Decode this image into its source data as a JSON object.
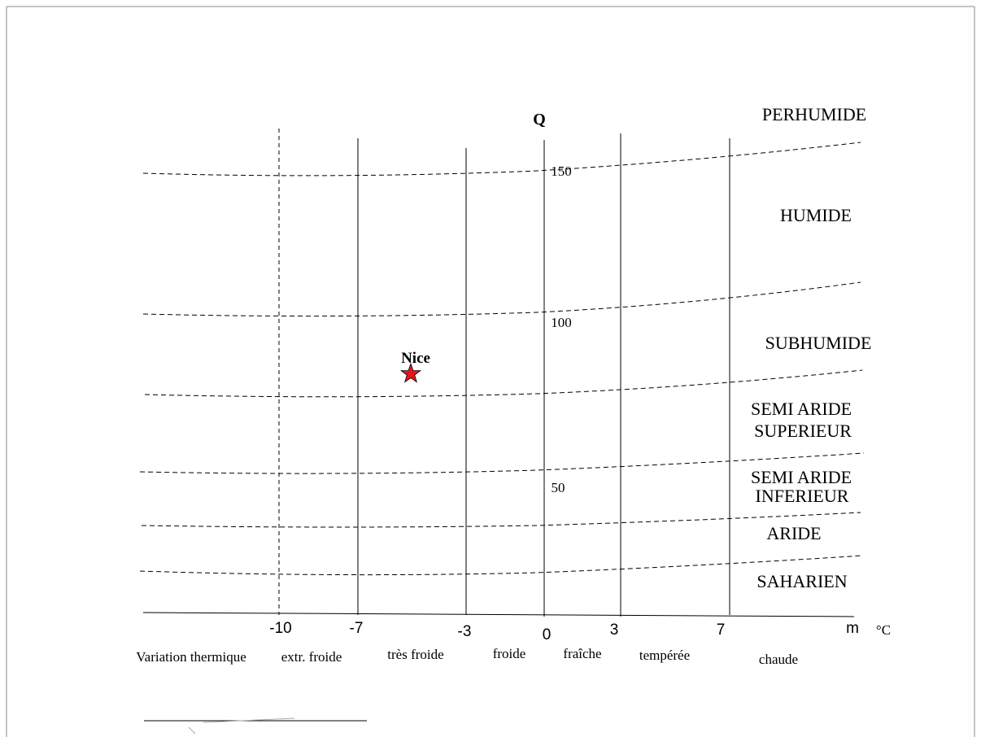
{
  "diagram": {
    "axis_title": "Q",
    "axis_unit_m": "m",
    "axis_unit_c": "°C",
    "q_ticks": [
      "150",
      "100",
      "50"
    ],
    "m_ticks": [
      "-10",
      "-7",
      "-3",
      "0",
      "3",
      "7"
    ],
    "zones": [
      "PERHUMIDE",
      "HUMIDE",
      "SUBHUMIDE",
      "SEMI ARIDE",
      "SUPERIEUR",
      "SEMI ARIDE",
      "INFERIEUR",
      "ARIDE",
      "SAHARIEN"
    ],
    "variation_title": "Variation thermique",
    "winter_types": [
      "extr. froide",
      "très froide",
      "froide",
      "fraîche",
      "tempérée",
      "chaude"
    ],
    "station": {
      "name": "Nice",
      "marker_color": "#e8141b"
    },
    "colors": {
      "line": "#000000",
      "frame": "#888888"
    }
  }
}
